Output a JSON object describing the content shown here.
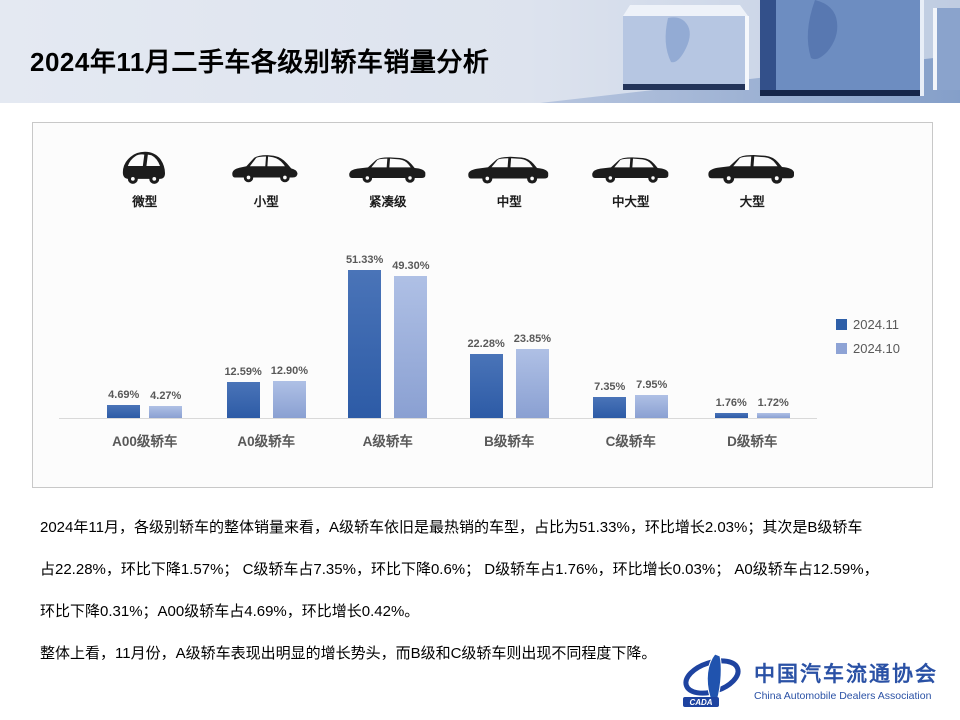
{
  "header": {
    "title": "2024年11月二手车各级别轿车销量分析"
  },
  "chart_data": {
    "type": "bar",
    "title": "2024年11月二手车各级别轿车销量分析",
    "categories": [
      "A00级轿车",
      "A0级轿车",
      "A级轿车",
      "B级轿车",
      "C级轿车",
      "D级轿车"
    ],
    "vehicle_type_labels": [
      "微型",
      "小型",
      "紧凑级",
      "中型",
      "中大型",
      "大型"
    ],
    "series": [
      {
        "name": "2024.11",
        "color": "#2E5FA8",
        "values": [
          4.69,
          12.59,
          51.33,
          22.28,
          7.35,
          1.76
        ]
      },
      {
        "name": "2024.10",
        "color": "#8EA3D5",
        "values": [
          4.27,
          12.9,
          49.3,
          23.85,
          7.95,
          1.72
        ]
      }
    ],
    "value_suffix": "%",
    "data_labels": true,
    "grid": false,
    "legend_position": "right",
    "ylim": [
      0,
      55
    ]
  },
  "analysis": {
    "lines": [
      "2024年11月，各级别轿车的整体销量来看，A级轿车依旧是最热销的车型，占比为51.33%，环比增长2.03%；其次是B级轿车",
      "占22.28%，环比下降1.57%； C级轿车占7.35%，环比下降0.6%； D级轿车占1.76%，环比增长0.03%； A0级轿车占12.59%，",
      "环比下降0.31%；A00级轿车占4.69%，环比增长0.42%。",
      "整体上看，11月份，A级轿车表现出明显的增长势头，而B级和C级轿车则出现不同程度下降。"
    ]
  },
  "footer": {
    "logo_acronym": "CADA",
    "org_name_zh": "中国汽车流通协会",
    "org_name_en": "China Automobile Dealers Association"
  }
}
